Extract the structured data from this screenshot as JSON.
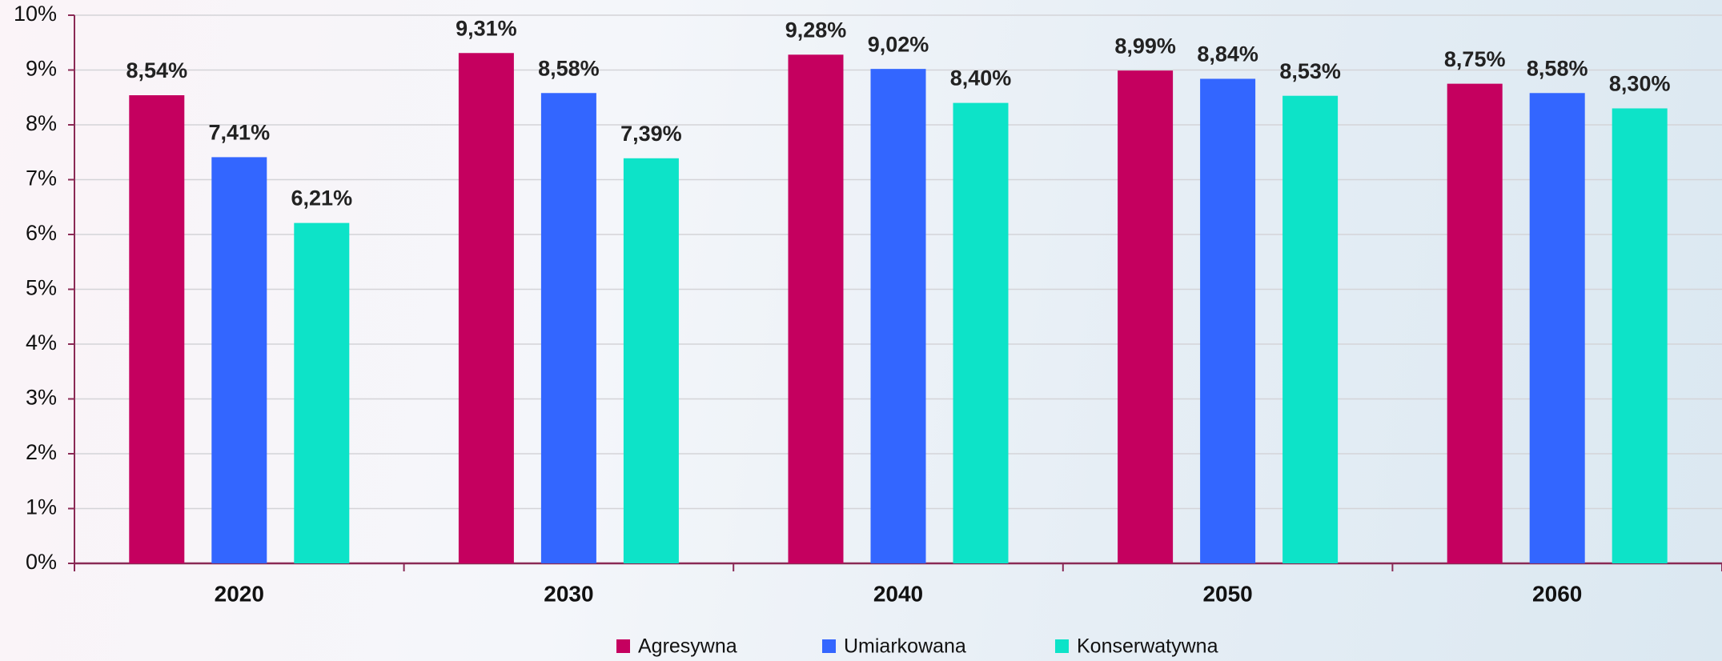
{
  "chart_data": {
    "type": "bar",
    "categories": [
      "2020",
      "2030",
      "2040",
      "2050",
      "2060"
    ],
    "series": [
      {
        "name": "Agresywna",
        "color": "#c5005f",
        "values": [
          8.54,
          9.31,
          9.28,
          8.99,
          8.75
        ],
        "value_labels": [
          "8,54%",
          "9,31%",
          "9,28%",
          "8,99%",
          "8,75%"
        ]
      },
      {
        "name": "Umiarkowana",
        "color": "#3366ff",
        "values": [
          7.41,
          8.58,
          9.02,
          8.84,
          8.58
        ],
        "value_labels": [
          "7,41%",
          "8,58%",
          "9,02%",
          "8,84%",
          "8,58%"
        ]
      },
      {
        "name": "Konserwatywna",
        "color": "#0de3c8",
        "values": [
          6.21,
          7.39,
          8.4,
          8.53,
          8.3
        ],
        "value_labels": [
          "6,21%",
          "7,39%",
          "8,40%",
          "8,53%",
          "8,30%"
        ]
      }
    ],
    "ylim": [
      0,
      10
    ],
    "yticks": [
      {
        "value": 0,
        "label": "0%"
      },
      {
        "value": 1,
        "label": "1%"
      },
      {
        "value": 2,
        "label": "2%"
      },
      {
        "value": 3,
        "label": "3%"
      },
      {
        "value": 4,
        "label": "4%"
      },
      {
        "value": 5,
        "label": "5%"
      },
      {
        "value": 6,
        "label": "6%"
      },
      {
        "value": 7,
        "label": "7%"
      },
      {
        "value": 8,
        "label": "8%"
      },
      {
        "value": 9,
        "label": "9%"
      },
      {
        "value": 10,
        "label": "10%"
      }
    ],
    "grid": true,
    "legend": "bottom"
  }
}
